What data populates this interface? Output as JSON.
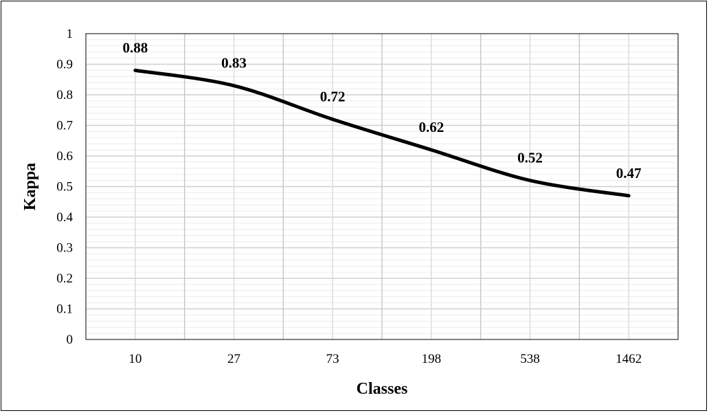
{
  "chart_data": {
    "type": "line",
    "title": "",
    "xlabel": "Classes",
    "ylabel": "Kappa",
    "categories": [
      "10",
      "27",
      "73",
      "198",
      "538",
      "1462"
    ],
    "series": [
      {
        "values": [
          0.88,
          0.83,
          0.72,
          0.62,
          0.52,
          0.47
        ]
      }
    ],
    "data_labels": [
      "0.88",
      "0.83",
      "0.72",
      "0.62",
      "0.52",
      "0.47"
    ],
    "ylim": [
      0,
      1
    ],
    "yticks": [
      "0",
      "0.1",
      "0.2",
      "0.3",
      "0.4",
      "0.5",
      "0.6",
      "0.7",
      "0.8",
      "0.9",
      "1"
    ],
    "grid": true,
    "smooth": true,
    "line_color": "#000000",
    "legend": "none"
  }
}
